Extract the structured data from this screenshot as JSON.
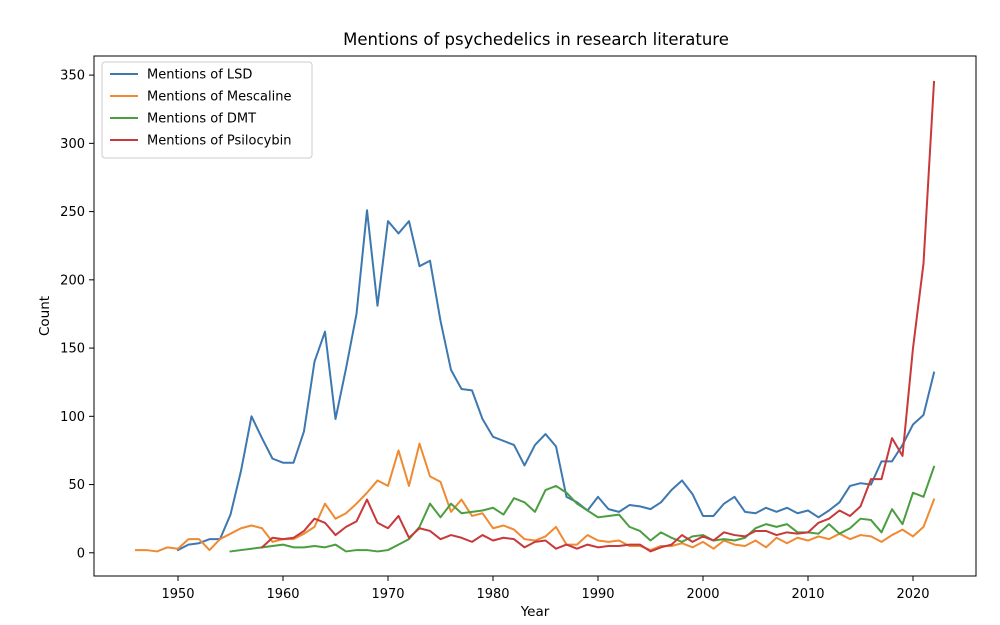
{
  "chart_data": {
    "type": "line",
    "title": "Mentions of psychedelics in research literature",
    "xlabel": "Year",
    "ylabel": "Count",
    "xlim": [
      1942,
      2026
    ],
    "ylim": [
      -17,
      364
    ],
    "xticks": [
      1950,
      1960,
      1970,
      1980,
      1990,
      2000,
      2010,
      2020
    ],
    "yticks": [
      0,
      50,
      100,
      150,
      200,
      250,
      300,
      350
    ],
    "grid": false,
    "legend_position": "top-left",
    "series": [
      {
        "name": "Mentions of LSD",
        "color": "#3d78b0",
        "x": [
          1950,
          1951,
          1952,
          1953,
          1954,
          1955,
          1956,
          1957,
          1958,
          1959,
          1960,
          1961,
          1962,
          1963,
          1964,
          1965,
          1966,
          1967,
          1968,
          1969,
          1970,
          1971,
          1972,
          1973,
          1974,
          1975,
          1976,
          1977,
          1978,
          1979,
          1980,
          1981,
          1982,
          1983,
          1984,
          1985,
          1986,
          1987,
          1988,
          1989,
          1990,
          1991,
          1992,
          1993,
          1994,
          1995,
          1996,
          1997,
          1998,
          1999,
          2000,
          2001,
          2002,
          2003,
          2004,
          2005,
          2006,
          2007,
          2008,
          2009,
          2010,
          2011,
          2012,
          2013,
          2014,
          2015,
          2016,
          2017,
          2018,
          2019,
          2020,
          2021,
          2022
        ],
        "y": [
          2,
          6,
          7,
          10,
          10,
          28,
          60,
          100,
          84,
          69,
          66,
          66,
          89,
          140,
          162,
          98,
          135,
          175,
          251,
          181,
          243,
          234,
          243,
          210,
          214,
          170,
          134,
          120,
          119,
          98,
          85,
          82,
          79,
          64,
          79,
          87,
          78,
          41,
          37,
          31,
          41,
          32,
          30,
          35,
          34,
          32,
          37,
          46,
          53,
          43,
          27,
          27,
          36,
          41,
          30,
          29,
          33,
          30,
          33,
          29,
          31,
          26,
          31,
          37,
          49,
          51,
          50,
          67,
          67,
          79,
          94,
          101,
          132
        ]
      },
      {
        "name": "Mentions of Mescaline",
        "color": "#f08a32",
        "x": [
          1946,
          1947,
          1948,
          1949,
          1950,
          1951,
          1952,
          1953,
          1954,
          1955,
          1956,
          1957,
          1958,
          1959,
          1960,
          1961,
          1962,
          1963,
          1964,
          1965,
          1966,
          1967,
          1968,
          1969,
          1970,
          1971,
          1972,
          1973,
          1974,
          1975,
          1976,
          1977,
          1978,
          1979,
          1980,
          1981,
          1982,
          1983,
          1984,
          1985,
          1986,
          1987,
          1988,
          1989,
          1990,
          1991,
          1992,
          1993,
          1994,
          1995,
          1996,
          1997,
          1998,
          1999,
          2000,
          2001,
          2002,
          2003,
          2004,
          2005,
          2006,
          2007,
          2008,
          2009,
          2010,
          2011,
          2012,
          2013,
          2014,
          2015,
          2016,
          2017,
          2018,
          2019,
          2020,
          2021,
          2022
        ],
        "y": [
          2,
          2,
          1,
          4,
          3,
          10,
          10,
          2,
          10,
          14,
          18,
          20,
          18,
          8,
          10,
          10,
          14,
          19,
          36,
          25,
          29,
          36,
          44,
          53,
          49,
          75,
          49,
          80,
          56,
          52,
          30,
          39,
          27,
          29,
          18,
          20,
          17,
          10,
          9,
          12,
          19,
          6,
          6,
          13,
          9,
          8,
          9,
          5,
          5,
          2,
          5,
          5,
          7,
          4,
          8,
          3,
          9,
          6,
          5,
          9,
          4,
          11,
          7,
          11,
          9,
          12,
          10,
          14,
          10,
          13,
          12,
          8,
          13,
          17,
          12,
          19,
          39
        ]
      },
      {
        "name": "Mentions of DMT",
        "color": "#4a9e3f",
        "x": [
          1955,
          1956,
          1957,
          1958,
          1959,
          1960,
          1961,
          1962,
          1963,
          1964,
          1965,
          1966,
          1967,
          1968,
          1969,
          1970,
          1971,
          1972,
          1973,
          1974,
          1975,
          1976,
          1977,
          1978,
          1979,
          1980,
          1981,
          1982,
          1983,
          1984,
          1985,
          1986,
          1987,
          1988,
          1989,
          1990,
          1991,
          1992,
          1993,
          1994,
          1995,
          1996,
          1997,
          1998,
          1999,
          2000,
          2001,
          2002,
          2003,
          2004,
          2005,
          2006,
          2007,
          2008,
          2009,
          2010,
          2011,
          2012,
          2013,
          2014,
          2015,
          2016,
          2017,
          2018,
          2019,
          2020,
          2021,
          2022
        ],
        "y": [
          1,
          2,
          3,
          4,
          5,
          6,
          4,
          4,
          5,
          4,
          6,
          1,
          2,
          2,
          1,
          2,
          6,
          10,
          19,
          36,
          26,
          36,
          29,
          30,
          31,
          33,
          28,
          40,
          37,
          30,
          46,
          49,
          44,
          36,
          31,
          26,
          27,
          28,
          19,
          16,
          9,
          15,
          11,
          8,
          12,
          13,
          9,
          10,
          9,
          11,
          18,
          21,
          19,
          21,
          15,
          15,
          14,
          21,
          14,
          18,
          25,
          24,
          15,
          32,
          21,
          44,
          41,
          63
        ]
      },
      {
        "name": "Mentions of Psilocybin",
        "color": "#c7393a",
        "x": [
          1958,
          1959,
          1960,
          1961,
          1962,
          1963,
          1964,
          1965,
          1966,
          1967,
          1968,
          1969,
          1970,
          1971,
          1972,
          1973,
          1974,
          1975,
          1976,
          1977,
          1978,
          1979,
          1980,
          1981,
          1982,
          1983,
          1984,
          1985,
          1986,
          1987,
          1988,
          1989,
          1990,
          1991,
          1992,
          1993,
          1994,
          1995,
          1996,
          1997,
          1998,
          1999,
          2000,
          2001,
          2002,
          2003,
          2004,
          2005,
          2006,
          2007,
          2008,
          2009,
          2010,
          2011,
          2012,
          2013,
          2014,
          2015,
          2016,
          2017,
          2018,
          2019,
          2020,
          2021,
          2022
        ],
        "y": [
          4,
          11,
          10,
          11,
          16,
          25,
          22,
          13,
          19,
          23,
          39,
          22,
          18,
          27,
          11,
          18,
          16,
          10,
          13,
          11,
          8,
          13,
          9,
          11,
          10,
          4,
          8,
          9,
          3,
          6,
          3,
          6,
          4,
          5,
          5,
          6,
          6,
          1,
          4,
          6,
          13,
          8,
          12,
          9,
          15,
          13,
          12,
          16,
          16,
          13,
          15,
          14,
          15,
          22,
          25,
          31,
          27,
          34,
          54,
          54,
          84,
          71,
          150,
          212,
          345
        ]
      }
    ]
  }
}
